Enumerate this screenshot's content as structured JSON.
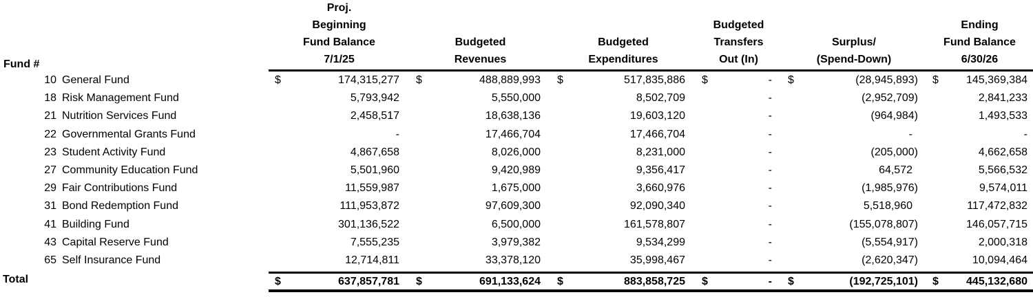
{
  "meta": {
    "currency_symbol": "$",
    "text_color": "#000000",
    "background_color": "#ffffff",
    "rule_color": "#000000"
  },
  "header": {
    "fund_label": "Fund #",
    "columns": [
      {
        "id": "beginning-fund-balance",
        "lines": [
          "Proj.",
          "Beginning",
          "Fund Balance",
          "7/1/25"
        ]
      },
      {
        "id": "budgeted-revenues",
        "lines": [
          "Budgeted",
          "Revenues"
        ]
      },
      {
        "id": "budgeted-expenditures",
        "lines": [
          "Budgeted",
          "Expenditures"
        ]
      },
      {
        "id": "budgeted-transfers",
        "lines": [
          "Budgeted",
          "Transfers",
          "Out (In)"
        ]
      },
      {
        "id": "surplus-spend-down",
        "lines": [
          "Surplus/",
          "(Spend-Down)"
        ]
      },
      {
        "id": "ending-fund-balance",
        "lines": [
          "Ending",
          "Fund Balance",
          "6/30/26"
        ]
      }
    ]
  },
  "rows": [
    {
      "fund_number": "10",
      "fund_name": "General Fund",
      "dollar_row": true,
      "values": [
        "174,315,277",
        "488,889,993",
        "517,835,886",
        "-",
        "(28,945,893)",
        "145,369,384"
      ]
    },
    {
      "fund_number": "18",
      "fund_name": "Risk Management Fund",
      "dollar_row": false,
      "values": [
        "5,793,942",
        "5,550,000",
        "8,502,709",
        "-",
        "(2,952,709)",
        "2,841,233"
      ]
    },
    {
      "fund_number": "21",
      "fund_name": "Nutrition Services Fund",
      "dollar_row": false,
      "values": [
        "2,458,517",
        "18,638,136",
        "19,603,120",
        "-",
        "(964,984)",
        "1,493,533"
      ]
    },
    {
      "fund_number": "22",
      "fund_name": "Governmental Grants Fund",
      "dollar_row": false,
      "values": [
        "-",
        "17,466,704",
        "17,466,704",
        "-",
        "-",
        "-"
      ]
    },
    {
      "fund_number": "23",
      "fund_name": "Student Activity Fund",
      "dollar_row": false,
      "values": [
        "4,867,658",
        "8,026,000",
        "8,231,000",
        "-",
        "(205,000)",
        "4,662,658"
      ]
    },
    {
      "fund_number": "27",
      "fund_name": "Community Education Fund",
      "dollar_row": false,
      "values": [
        "5,501,960",
        "9,420,989",
        "9,356,417",
        "-",
        "64,572",
        "5,566,532"
      ]
    },
    {
      "fund_number": "29",
      "fund_name": "Fair Contributions Fund",
      "dollar_row": false,
      "values": [
        "11,559,987",
        "1,675,000",
        "3,660,976",
        "-",
        "(1,985,976)",
        "9,574,011"
      ]
    },
    {
      "fund_number": "31",
      "fund_name": "Bond Redemption Fund",
      "dollar_row": false,
      "values": [
        "111,953,872",
        "97,609,300",
        "92,090,340",
        "-",
        "5,518,960",
        "117,472,832"
      ]
    },
    {
      "fund_number": "41",
      "fund_name": "Building Fund",
      "dollar_row": false,
      "values": [
        "301,136,522",
        "6,500,000",
        "161,578,807",
        "-",
        "(155,078,807)",
        "146,057,715"
      ]
    },
    {
      "fund_number": "43",
      "fund_name": "Capital Reserve Fund",
      "dollar_row": false,
      "values": [
        "7,555,235",
        "3,979,382",
        "9,534,299",
        "-",
        "(5,554,917)",
        "2,000,318"
      ]
    },
    {
      "fund_number": "65",
      "fund_name": "Self Insurance Fund",
      "dollar_row": false,
      "values": [
        "12,714,811",
        "33,378,120",
        "35,998,467",
        "-",
        "(2,620,347)",
        "10,094,464"
      ]
    }
  ],
  "total": {
    "label": "Total",
    "dollar_row": true,
    "values": [
      "637,857,781",
      "691,133,624",
      "883,858,725",
      "-",
      "(192,725,101)",
      "445,132,680"
    ]
  }
}
